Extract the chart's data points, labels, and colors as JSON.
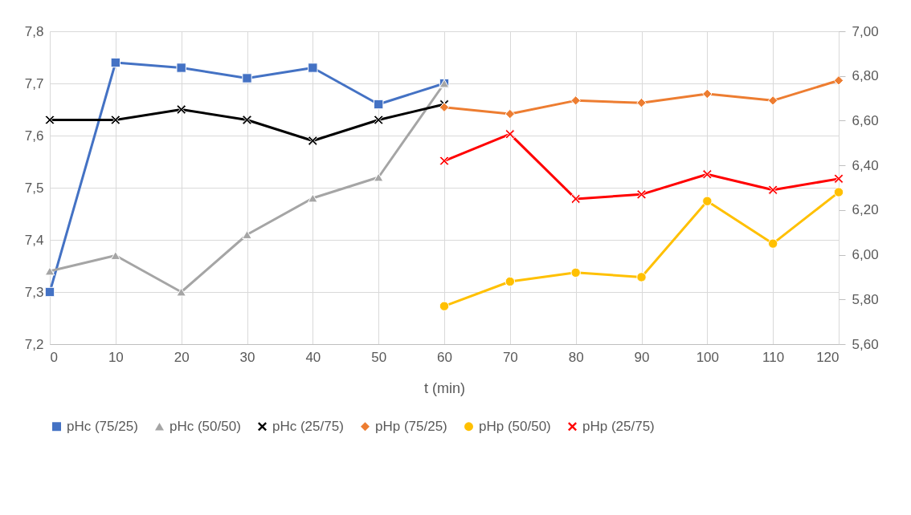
{
  "chart_data": {
    "type": "line",
    "xlabel": "t (min)",
    "xlim": [
      0,
      120
    ],
    "xticks": [
      0,
      10,
      20,
      30,
      40,
      50,
      60,
      70,
      80,
      90,
      100,
      110,
      120
    ],
    "ylim": [
      7.2,
      7.8
    ],
    "yticks": [
      {
        "value": 7.2,
        "label": "7,2"
      },
      {
        "value": 7.3,
        "label": "7,3"
      },
      {
        "value": 7.4,
        "label": "7,4"
      },
      {
        "value": 7.5,
        "label": "7,5"
      },
      {
        "value": 7.6,
        "label": "7,6"
      },
      {
        "value": 7.7,
        "label": "7,7"
      },
      {
        "value": 7.8,
        "label": "7,8"
      }
    ],
    "y2lim": [
      5.6,
      7.0
    ],
    "y2ticks": [
      {
        "value": 5.6,
        "label": "5,60"
      },
      {
        "value": 5.8,
        "label": "5,80"
      },
      {
        "value": 6.0,
        "label": "6,00"
      },
      {
        "value": 6.2,
        "label": "6,20"
      },
      {
        "value": 6.4,
        "label": "6,40"
      },
      {
        "value": 6.6,
        "label": "6,60"
      },
      {
        "value": 6.8,
        "label": "6,80"
      },
      {
        "value": 7.0,
        "label": "7,00"
      }
    ],
    "grid": true,
    "legend": "bottom",
    "line_style": "solid",
    "series": [
      {
        "name": "pHc (75/25)",
        "color": "#4472c4",
        "marker": "square",
        "x": [
          0,
          10,
          20,
          30,
          40,
          50,
          60
        ],
        "values": [
          7.3,
          7.74,
          7.73,
          7.71,
          7.73,
          7.66,
          7.7
        ]
      },
      {
        "name": "pHc (50/50)",
        "color": "#a5a5a5",
        "marker": "triangle",
        "x": [
          0,
          10,
          20,
          30,
          40,
          50,
          60
        ],
        "values": [
          7.34,
          7.37,
          7.3,
          7.41,
          7.48,
          7.52,
          7.7
        ]
      },
      {
        "name": "pHc (25/75)",
        "color": "#000000",
        "marker": "cross",
        "x": [
          0,
          10,
          20,
          30,
          40,
          50,
          60
        ],
        "values": [
          7.63,
          7.63,
          7.65,
          7.63,
          7.59,
          7.63,
          7.66
        ]
      },
      {
        "name": "pHp (75/25)",
        "color": "#ed7d31",
        "marker": "diamond",
        "axis": "y2",
        "x": [
          60,
          70,
          80,
          90,
          100,
          110,
          120
        ],
        "values": [
          6.66,
          6.63,
          6.69,
          6.68,
          6.72,
          6.69,
          6.78
        ]
      },
      {
        "name": "pHp (50/50)",
        "color": "#ffc000",
        "marker": "circle",
        "axis": "y2",
        "x": [
          60,
          70,
          80,
          90,
          100,
          110,
          120
        ],
        "values": [
          5.77,
          5.88,
          5.92,
          5.9,
          6.24,
          6.05,
          6.28
        ]
      },
      {
        "name": "pHp (25/75)",
        "color": "#ff0000",
        "marker": "cross",
        "axis": "y2",
        "x": [
          60,
          70,
          80,
          90,
          100,
          110,
          120
        ],
        "values": [
          6.42,
          6.54,
          6.25,
          6.27,
          6.36,
          6.29,
          6.34
        ]
      }
    ]
  }
}
